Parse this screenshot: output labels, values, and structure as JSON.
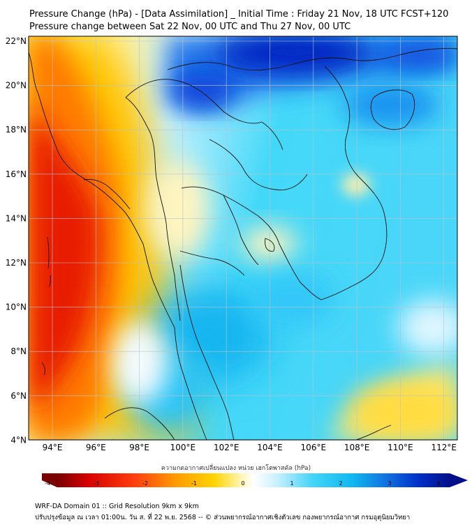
{
  "header": {
    "title_line1": "Pressure Change (hPa) - [Data Assimilation] _ Initial Time : Friday 21 Nov, 18 UTC FCST+120",
    "title_line2": "Pressure change between Sat 22 Nov, 00 UTC and Thu 27 Nov, 00 UTC"
  },
  "map": {
    "lat_labels": [
      "22°N",
      "20°N",
      "18°N",
      "16°N",
      "14°N",
      "12°N",
      "10°N",
      "8°N",
      "6°N",
      "4°N"
    ],
    "lon_labels": [
      "94°E",
      "96°E",
      "98°E",
      "100°E",
      "102°E",
      "104°E",
      "106°E",
      "108°E",
      "110°E",
      "112°E"
    ],
    "field": "pressure change (hPa)",
    "colors": {
      "strong_fall": "#0010b0",
      "fall": "#1ec8f0",
      "neutral": "#ffffff",
      "rise": "#ffd400",
      "strong_rise": "#e00000",
      "border": "#000000",
      "grid": "#b8c4cc"
    }
  },
  "colorbar": {
    "title": "ความกดอากาศเปลี่ยนแปลง หน่วย เฮกโตพาสคัล (hPa)",
    "min": -4,
    "max": 4,
    "labels": [
      "-4",
      "-3",
      "-2",
      "-1",
      "0",
      "1",
      "2",
      "3",
      "4"
    ]
  },
  "footer": {
    "line1": "WRF-DA Domain 01 :: Grid Resolution 9km x 9km",
    "line2": "ปรับปรุงข้อมูล ณ เวลา 01:00น. วัน ส. ที่ 22 พ.ย. 2568 -- © ส่วนพยากรณ์อากาศเชิงตัวเลข กองพยากรณ์อากาศ กรมอุตุนิยมวิทยา"
  }
}
